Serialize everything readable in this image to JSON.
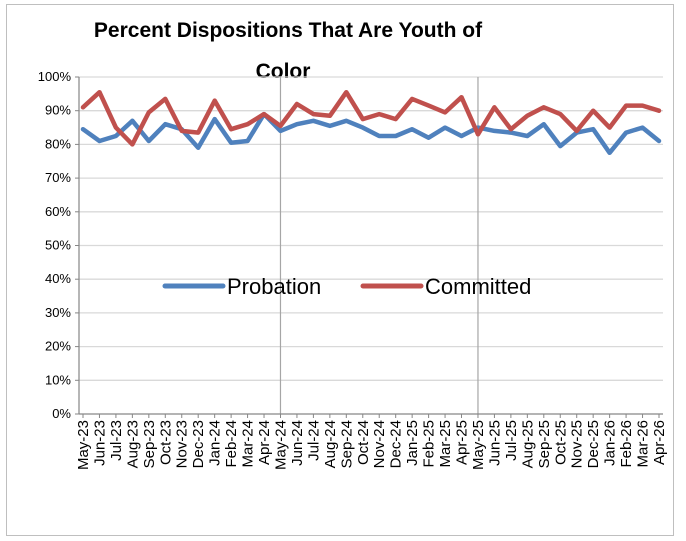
{
  "chart_data": {
    "type": "line",
    "title_line1": "Percent Dispositions That Are Youth of",
    "title_line2": "Color",
    "y_ticks": [
      "0%",
      "10%",
      "20%",
      "30%",
      "40%",
      "50%",
      "60%",
      "70%",
      "80%",
      "90%",
      "100%"
    ],
    "ylim": [
      0,
      100
    ],
    "grid": true,
    "legend_position": "center",
    "categories": [
      "May-23",
      "Jun-23",
      "Jul-23",
      "Aug-23",
      "Sep-23",
      "Oct-23",
      "Nov-23",
      "Dec-23",
      "Jan-24",
      "Feb-24",
      "Mar-24",
      "Apr-24",
      "May-24",
      "Jun-24",
      "Jul-24",
      "Aug-24",
      "Sep-24",
      "Oct-24",
      "Nov-24",
      "Dec-24",
      "Jan-25",
      "Feb-25",
      "Mar-25",
      "Apr-25",
      "May-25",
      "Jun-25",
      "Jul-25",
      "Aug-25",
      "Sep-25",
      "Oct-25",
      "Nov-25",
      "Dec-25",
      "Jan-26",
      "Feb-26",
      "Mar-26",
      "Apr-26"
    ],
    "series": [
      {
        "name": "Probation",
        "color": "#4f81bd",
        "values": [
          84.5,
          81,
          82.5,
          87,
          81,
          86,
          84.5,
          79,
          87.5,
          80.5,
          81,
          89,
          84,
          86,
          87,
          85.5,
          87,
          85,
          82.5,
          82.5,
          84.5,
          82,
          85,
          82.5,
          85,
          84,
          83.5,
          82.5,
          86,
          79.5,
          83.5,
          84.5,
          77.5,
          83.5,
          85,
          81
        ]
      },
      {
        "name": "Committed",
        "color": "#c0504d",
        "values": [
          91,
          95.5,
          85,
          80,
          89.5,
          93.5,
          84,
          83.5,
          93,
          84.5,
          86,
          89,
          85.5,
          92,
          89,
          88.5,
          95.5,
          87.5,
          89,
          87.5,
          93.5,
          91.5,
          89.5,
          94,
          83,
          91,
          84.5,
          88.5,
          91,
          89,
          84,
          90,
          85,
          91.5,
          91.5,
          90
        ]
      }
    ],
    "vertical_markers": [
      "May-24",
      "May-25"
    ]
  }
}
